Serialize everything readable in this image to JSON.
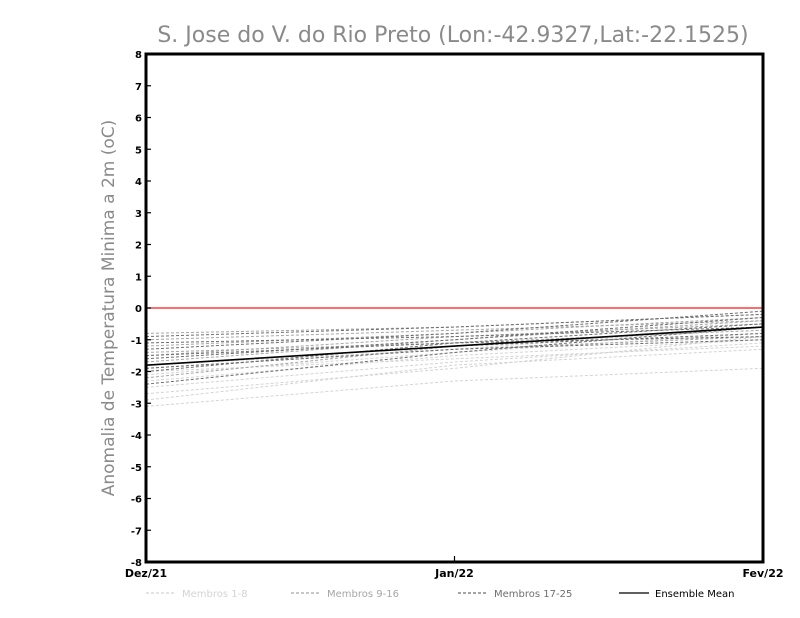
{
  "chart_data": {
    "type": "line",
    "title": "S. Jose do V. do Rio Preto (Lon:-42.9327,Lat:-22.1525)",
    "xlabel": "",
    "ylabel": "Anomalia de Temperatura Minima a 2m (oC)",
    "categories": [
      "Dez/21",
      "Jan/22",
      "Fev/22"
    ],
    "ylim": [
      -8,
      8
    ],
    "yticks": [
      "-8",
      "-7",
      "-6",
      "-5",
      "-4",
      "-3",
      "-2",
      "-1",
      "0",
      "1",
      "2",
      "3",
      "4",
      "5",
      "6",
      "7",
      "8"
    ],
    "reference_line": {
      "value": 0,
      "color": "#ff3b3b"
    },
    "legend": {
      "placement": "bottom"
    },
    "groups": [
      {
        "name": "Membros 1-8",
        "color": "#d4d4d4",
        "style": "dashed",
        "members": [
          [
            -3.1,
            -2.3,
            -1.9
          ],
          [
            -2.9,
            -1.8,
            -1.3
          ],
          [
            -2.7,
            -1.9,
            -0.9
          ],
          [
            -2.5,
            -1.7,
            -1.1
          ],
          [
            -2.3,
            -1.5,
            -1.0
          ],
          [
            -2.1,
            -1.4,
            -0.8
          ],
          [
            -2.0,
            -1.6,
            -1.2
          ],
          [
            -1.8,
            -1.3,
            -0.6
          ]
        ]
      },
      {
        "name": "Membros 9-16",
        "color": "#a6a6a6",
        "style": "dashed",
        "members": [
          [
            -2.2,
            -1.2,
            -0.6
          ],
          [
            -1.9,
            -1.3,
            -0.9
          ],
          [
            -1.7,
            -1.0,
            -0.4
          ],
          [
            -1.5,
            -0.9,
            -0.5
          ],
          [
            -1.4,
            -1.1,
            -0.7
          ],
          [
            -1.2,
            -0.8,
            -0.3
          ],
          [
            -1.0,
            -0.7,
            -0.4
          ],
          [
            -0.8,
            -0.6,
            -0.2
          ]
        ]
      },
      {
        "name": "Membros 17-25",
        "color": "#6e6e6e",
        "style": "dashed",
        "members": [
          [
            -2.4,
            -1.4,
            -0.6
          ],
          [
            -2.0,
            -1.1,
            -0.5
          ],
          [
            -1.8,
            -1.2,
            -0.8
          ],
          [
            -1.6,
            -1.0,
            -0.3
          ],
          [
            -1.3,
            -0.8,
            -0.1
          ],
          [
            -1.1,
            -0.9,
            -0.6
          ],
          [
            -0.9,
            -0.6,
            -0.2
          ],
          [
            -1.5,
            -1.1,
            -0.9
          ],
          [
            -1.9,
            -1.3,
            -1.0
          ]
        ]
      }
    ],
    "series": [
      {
        "name": "Ensemble Mean",
        "values": [
          -1.8,
          -1.2,
          -0.6
        ],
        "color": "#000000",
        "style": "solid"
      }
    ]
  }
}
